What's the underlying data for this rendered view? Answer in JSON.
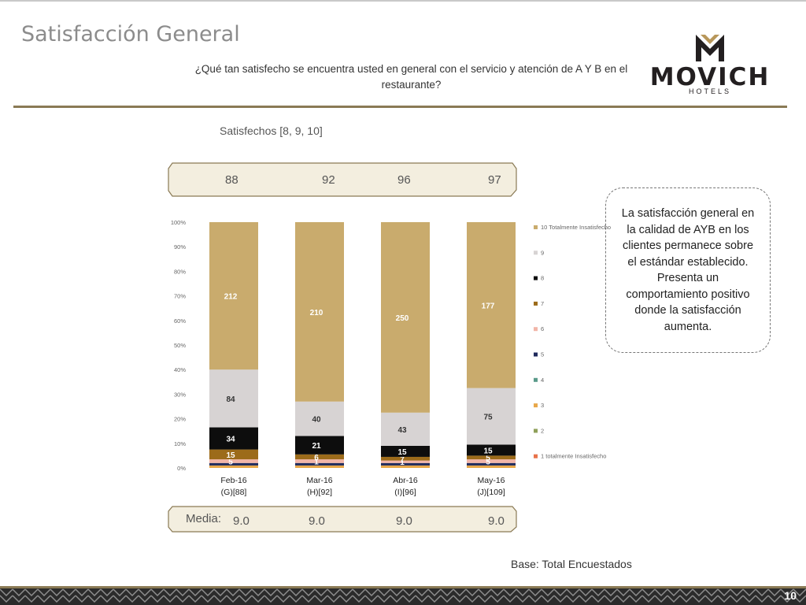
{
  "slide": {
    "title": "Satisfacción General",
    "question": "¿Qué tan satisfecho se encuentra usted en general con el servicio y atención de A Y B en el restaurante?",
    "logo_text": "MOVICH",
    "logo_subtext": "HOTELS",
    "satisfied_label": "Satisfechos [8, 9, 10]",
    "satisfied_values": [
      "88",
      "92",
      "96",
      "97"
    ],
    "media_label": "Media:",
    "media_values": [
      "9.0",
      "9.0",
      "9.0",
      "9.0"
    ],
    "note": "La satisfacción general en la calidad de AYB en los clientes permanece sobre el estándar establecido. Presenta un comportamiento positivo donde la satisfacción aumenta.",
    "base": "Base: Total Encuestados",
    "page_number": "10"
  },
  "colors": {
    "rule": "#8a7a55",
    "band": "#f3eedf",
    "band_border": "#8a7a55",
    "footer_dark": "#2b2b2b",
    "footer_light": "#8f8f8f"
  },
  "chart_data": {
    "type": "bar",
    "stacked": true,
    "percent_axis": true,
    "categories": [
      "Feb-16",
      "Mar-16",
      "Abr-16",
      "May-16"
    ],
    "category_sublabels": [
      "(G)[88]",
      "(H)[92]",
      "(I)[96]",
      "(J)[109]"
    ],
    "y_ticks": [
      "0%",
      "10%",
      "20%",
      "30%",
      "40%",
      "50%",
      "60%",
      "70%",
      "80%",
      "90%",
      "100%"
    ],
    "ylim": [
      0,
      100
    ],
    "series": [
      {
        "name": "1 totalmente Insatisfecho",
        "color": "#e8734a",
        "values": [
          0,
          0,
          0,
          0
        ],
        "labels": [
          "",
          "",
          "",
          ""
        ]
      },
      {
        "name": "2",
        "color": "#8fa05a",
        "values": [
          0,
          0,
          0,
          0
        ],
        "labels": [
          "",
          "",
          "",
          ""
        ]
      },
      {
        "name": "3",
        "color": "#e8a84a",
        "values": [
          1,
          1,
          1,
          1
        ],
        "labels": [
          "",
          "",
          "",
          ""
        ]
      },
      {
        "name": "4",
        "color": "#5a9a8a",
        "values": [
          0,
          0,
          0,
          0
        ],
        "labels": [
          "",
          "",
          "",
          ""
        ]
      },
      {
        "name": "5",
        "color": "#1f2a5c",
        "values": [
          1,
          1,
          1,
          1
        ],
        "labels": [
          "",
          "",
          "",
          ""
        ]
      },
      {
        "name": "6",
        "color": "#f2b5a8",
        "values": [
          1.5,
          1.5,
          1,
          1.5
        ],
        "labels": [
          "5",
          "1",
          "1",
          "5"
        ]
      },
      {
        "name": "7",
        "color": "#9c6b1a",
        "values": [
          4,
          2,
          1.5,
          1.5
        ],
        "labels": [
          "15",
          "6",
          "7",
          "5"
        ]
      },
      {
        "name": "8",
        "color": "#0d0d0d",
        "values": [
          9,
          7.5,
          4.5,
          4.5
        ],
        "labels": [
          "34",
          "21",
          "15",
          "15"
        ]
      },
      {
        "name": "9",
        "color": "#d7d3d3",
        "values": [
          23.5,
          14,
          13.5,
          23
        ],
        "labels": [
          "84",
          "40",
          "43",
          "75"
        ]
      },
      {
        "name": "10 Totalmente Insatisfecho",
        "color": "#c9ab6d",
        "values": [
          60,
          73,
          77.5,
          67.5
        ],
        "labels": [
          "212",
          "210",
          "250",
          "177"
        ]
      }
    ],
    "title": "",
    "xlabel": "",
    "ylabel": ""
  }
}
